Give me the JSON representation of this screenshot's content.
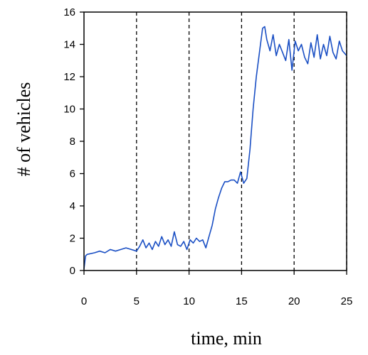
{
  "chart_data": {
    "type": "line",
    "title": "",
    "xlabel": "time, min",
    "ylabel": "# of vehicles",
    "xlim": [
      0,
      25
    ],
    "ylim": [
      0,
      16
    ],
    "x_ticks": [
      0,
      5,
      10,
      15,
      20,
      25
    ],
    "y_ticks": [
      0,
      2,
      4,
      6,
      8,
      10,
      12,
      14,
      16
    ],
    "vertical_reference_lines_x": [
      5,
      10,
      15,
      20,
      25
    ],
    "grid": false,
    "legend": "none",
    "line_color": "#1a4fc4",
    "series": [
      {
        "x": [
          0,
          0.15,
          0.3,
          1,
          1.5,
          2,
          2.5,
          3,
          3.5,
          4,
          4.5,
          5,
          5.3,
          5.6,
          5.9,
          6.2,
          6.5,
          6.8,
          7.1,
          7.4,
          7.7,
          8,
          8.3,
          8.6,
          8.9,
          9.2,
          9.5,
          9.8,
          10.1,
          10.4,
          10.7,
          11,
          11.3,
          11.6,
          11.9,
          12.2,
          12.5,
          12.8,
          13.1,
          13.4,
          13.7,
          14,
          14.3,
          14.6,
          14.9,
          15.2,
          15.5,
          15.8,
          16.1,
          16.4,
          16.7,
          17,
          17.2,
          17.4,
          17.7,
          18,
          18.3,
          18.6,
          18.9,
          19.2,
          19.5,
          19.8,
          20.1,
          20.4,
          20.7,
          21,
          21.3,
          21.6,
          21.9,
          22.2,
          22.5,
          22.8,
          23.1,
          23.4,
          23.7,
          24,
          24.3,
          24.6,
          25
        ],
        "y": [
          0.1,
          0.9,
          1.0,
          1.1,
          1.2,
          1.1,
          1.3,
          1.2,
          1.3,
          1.4,
          1.3,
          1.2,
          1.5,
          1.9,
          1.4,
          1.7,
          1.3,
          1.8,
          1.5,
          2.1,
          1.6,
          1.9,
          1.5,
          2.4,
          1.6,
          1.5,
          1.8,
          1.3,
          1.9,
          1.7,
          2.0,
          1.8,
          1.9,
          1.4,
          2.1,
          2.8,
          3.8,
          4.5,
          5.1,
          5.5,
          5.5,
          5.6,
          5.6,
          5.4,
          6.1,
          5.4,
          5.7,
          7.5,
          10.0,
          12.0,
          13.5,
          15.0,
          15.1,
          14.3,
          13.6,
          14.6,
          13.3,
          14.0,
          13.5,
          13.0,
          14.3,
          12.4,
          14.2,
          13.6,
          14.0,
          13.2,
          12.8,
          14.1,
          13.2,
          14.6,
          13.1,
          14.0,
          13.3,
          14.5,
          13.5,
          13.1,
          14.2,
          13.6,
          13.3
        ]
      }
    ]
  }
}
